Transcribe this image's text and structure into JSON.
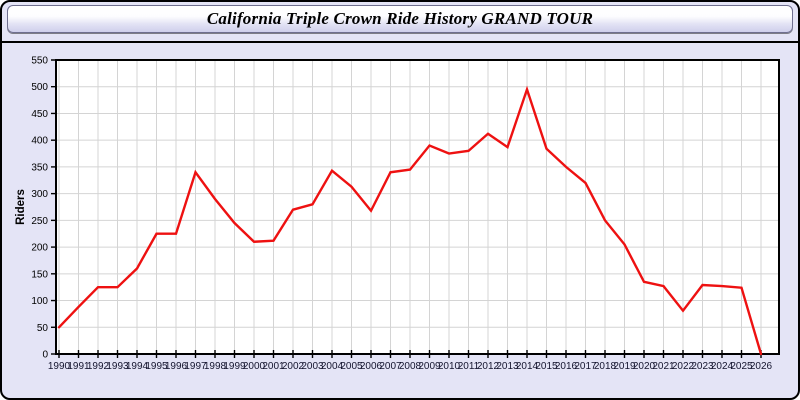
{
  "header": {
    "title": "California Triple Crown Ride History GRAND TOUR"
  },
  "chart_data": {
    "type": "line",
    "title": "California Triple Crown Ride History GRAND TOUR",
    "xlabel": "",
    "ylabel": "Riders",
    "x": [
      1990,
      1991,
      1992,
      1993,
      1994,
      1995,
      1996,
      1997,
      1998,
      1999,
      2000,
      2001,
      2002,
      2003,
      2004,
      2005,
      2006,
      2007,
      2008,
      2009,
      2010,
      2011,
      2012,
      2013,
      2014,
      2015,
      2016,
      2017,
      2018,
      2019,
      2020,
      2021,
      2022,
      2023,
      2024,
      2025,
      2026
    ],
    "series": [
      {
        "name": "Riders",
        "values": [
          50,
          88,
          125,
          125,
          160,
          225,
          225,
          340,
          290,
          245,
          210,
          212,
          270,
          280,
          343,
          313,
          268,
          340,
          345,
          390,
          375,
          380,
          412,
          387,
          495,
          384,
          350,
          320,
          250,
          205,
          135,
          127,
          81,
          129,
          127,
          124,
          0
        ]
      }
    ],
    "ylim": [
      0,
      550
    ],
    "yticks": [
      0,
      50,
      100,
      150,
      200,
      250,
      300,
      350,
      400,
      450,
      500,
      550
    ],
    "grid": true,
    "legend_position": "none",
    "colors": {
      "line": "#ee1111",
      "plot_background": "#ffffff",
      "page_background": "#e4e4f6",
      "grid": "#d4d4d4",
      "axis": "#000000",
      "x_tick_label": "#14142e",
      "y_tick_label": "#000000",
      "axis_title": "#000000"
    }
  }
}
